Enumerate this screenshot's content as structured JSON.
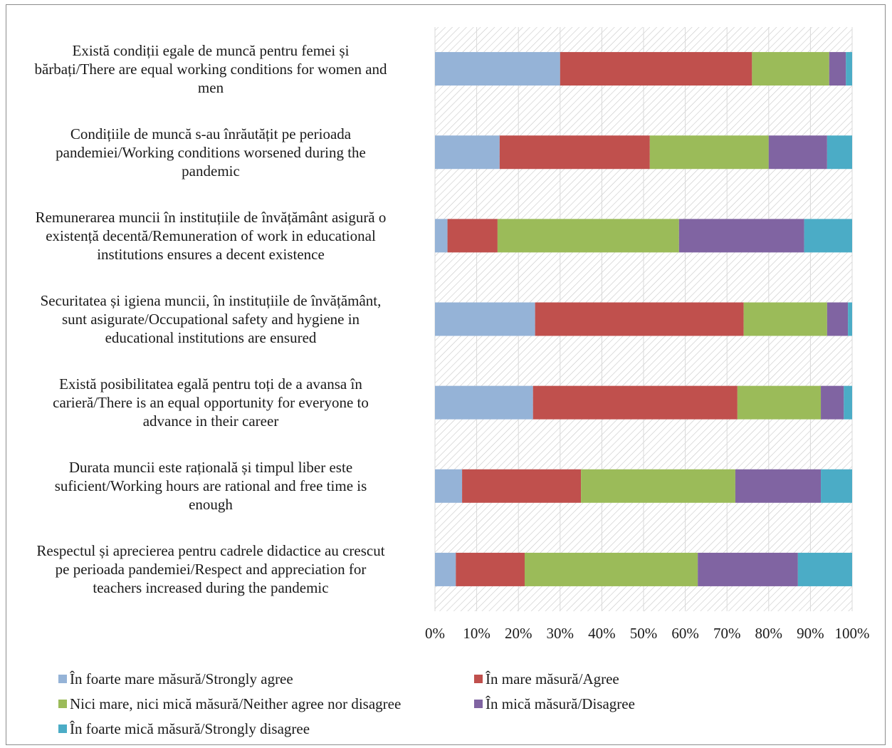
{
  "chart_data": {
    "type": "bar",
    "orientation": "horizontal",
    "stacked": "percent",
    "categories": [
      "Există condiții egale de muncă pentru femei și bărbați/There are equal working conditions for women and men",
      "Condițiile de muncă s-au înrăutățit pe perioada pandemiei/Working conditions worsened during the pandemic",
      "Remunerarea muncii în instituțiile de învățământ asigură o existență decentă/Remuneration of work in educational institutions ensures a decent existence",
      "Securitatea și igiena muncii, în instituțiile de învățământ, sunt asigurate/Occupational safety and hygiene in educational institutions are ensured",
      "Există posibilitatea egală pentru toți de a avansa în carieră/There is an equal opportunity for everyone to advance in their career",
      "Durata muncii este rațională și timpul liber este suficient/Working hours are rational and free time is enough",
      "Respectul și aprecierea pentru cadrele didactice au crescut pe perioada pandemiei/Respect and appreciation for teachers increased during the pandemic"
    ],
    "series": [
      {
        "name": "În foarte mare măsură/Strongly agree",
        "color": "#95b3d7",
        "values": [
          30,
          15.5,
          3,
          24,
          23.5,
          6.5,
          5
        ]
      },
      {
        "name": "În mare măsură/Agree",
        "color": "#c0504d",
        "values": [
          46,
          36,
          12,
          50,
          49,
          28.5,
          16.5
        ]
      },
      {
        "name": "Nici mare, nici mică măsură/Neither agree nor disagree",
        "color": "#9bbb59",
        "values": [
          18.5,
          28.5,
          43.5,
          20,
          20,
          37,
          41.5
        ]
      },
      {
        "name": "În mică măsură/Disagree",
        "color": "#8064a2",
        "values": [
          4,
          14,
          30,
          5,
          5.5,
          20.5,
          24
        ]
      },
      {
        "name": "În foarte mică măsură/Strongly disagree",
        "color": "#4bacc6",
        "values": [
          1.5,
          6,
          11.5,
          1,
          2,
          7.5,
          13
        ]
      }
    ],
    "xlim": [
      0,
      100
    ],
    "x_ticks": [
      "0%",
      "10%",
      "20%",
      "30%",
      "40%",
      "50%",
      "60%",
      "70%",
      "80%",
      "90%",
      "100%"
    ],
    "legend_position": "bottom",
    "plot_background": "diagonal-hatch"
  },
  "labels": {
    "categories": [
      [
        "Există condiții egale de muncă pentru femei și",
        "bărbați/There are equal working conditions for women and",
        "men"
      ],
      [
        "Condițiile de muncă s-au înrăutățit pe perioada",
        "pandemiei/Working conditions worsened during the",
        "pandemic"
      ],
      [
        "Remunerarea muncii în instituțiile de învățământ asigură o",
        "existență decentă/Remuneration of work in educational",
        "institutions ensures a decent existence"
      ],
      [
        "Securitatea și igiena muncii, în instituțiile de învățământ,",
        "sunt asigurate/Occupational safety and hygiene in",
        "educational institutions are ensured"
      ],
      [
        "Există posibilitatea egală pentru toți de a avansa în",
        "carieră/There is an equal opportunity for everyone to",
        "advance in their career"
      ],
      [
        "Durata muncii este rațională și timpul liber este",
        "suficient/Working hours are rational and free time is",
        "enough"
      ],
      [
        "Respectul și aprecierea pentru cadrele didactice au crescut",
        "pe perioada pandemiei/Respect and appreciation for",
        "teachers increased during the pandemic"
      ]
    ]
  }
}
